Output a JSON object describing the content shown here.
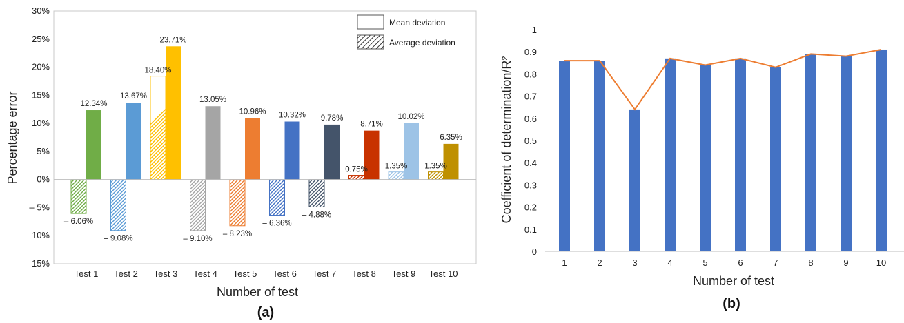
{
  "chart_data": [
    {
      "id": "a",
      "type": "bar",
      "panel_label": "(a)",
      "xlabel": "Number of test",
      "ylabel": "Percentage error",
      "ylim": [
        -15,
        30
      ],
      "yticks": [
        "-15%",
        "-10%",
        "-5%",
        "0%",
        "5%",
        "10%",
        "15%",
        "20%",
        "25%",
        "30%"
      ],
      "ytick_values": [
        -15,
        -10,
        -5,
        0,
        5,
        10,
        15,
        20,
        25,
        30
      ],
      "categories": [
        "Test 1",
        "Test 2",
        "Test 3",
        "Test 4",
        "Test 5",
        "Test 6",
        "Test 7",
        "Test 8",
        "Test 9",
        "Test 10"
      ],
      "legend": {
        "position": "top-right",
        "entries": [
          "Mean deviation",
          "Average deviation"
        ]
      },
      "series": [
        {
          "name": "Mean deviation",
          "values": [
            12.34,
            13.67,
            23.71,
            13.05,
            10.96,
            10.32,
            9.78,
            8.71,
            10.02,
            6.35
          ],
          "labels": [
            "12.34%",
            "13.67%",
            "23.71%",
            "13.05%",
            "10.96%",
            "10.32%",
            "9.78%",
            "8.71%",
            "10.02%",
            "6.35%"
          ]
        },
        {
          "name": "Average deviation",
          "values": [
            -6.06,
            -9.08,
            18.4,
            -9.1,
            -8.23,
            -6.36,
            -4.88,
            0.75,
            1.35,
            1.35
          ],
          "labels": [
            "– 6.06%",
            "– 9.08%",
            "18.40%",
            "– 9.10%",
            "– 8.23%",
            "– 6.36%",
            "– 4.88%",
            "0.75%",
            "1.35%",
            "1.35%"
          ]
        }
      ],
      "colors": [
        "#70ad47",
        "#5b9bd5",
        "#ffc000",
        "#a5a5a5",
        "#ed7d31",
        "#4472c4",
        "#44546a",
        "#c83200",
        "#9dc3e6",
        "#bf9000"
      ],
      "grid": false
    },
    {
      "id": "b",
      "type": "bar",
      "panel_label": "(b)",
      "xlabel": "Number of test",
      "ylabel": "Coefficient of determination/R²",
      "ylim": [
        0,
        1
      ],
      "yticks": [
        "0",
        "0.1",
        "0.2",
        "0.3",
        "0.4",
        "0.5",
        "0.6",
        "0.7",
        "0.8",
        "0.9",
        "1"
      ],
      "ytick_values": [
        0,
        0.1,
        0.2,
        0.3,
        0.4,
        0.5,
        0.6,
        0.7,
        0.8,
        0.9,
        1
      ],
      "categories": [
        "1",
        "2",
        "3",
        "4",
        "5",
        "6",
        "7",
        "8",
        "9",
        "10"
      ],
      "values": [
        0.86,
        0.86,
        0.64,
        0.87,
        0.84,
        0.87,
        0.83,
        0.89,
        0.88,
        0.91
      ],
      "line_values": [
        0.86,
        0.86,
        0.64,
        0.87,
        0.84,
        0.87,
        0.83,
        0.89,
        0.88,
        0.91
      ],
      "bar_color": "#4472c4",
      "line_color": "#ed7d31",
      "grid": false
    }
  ]
}
